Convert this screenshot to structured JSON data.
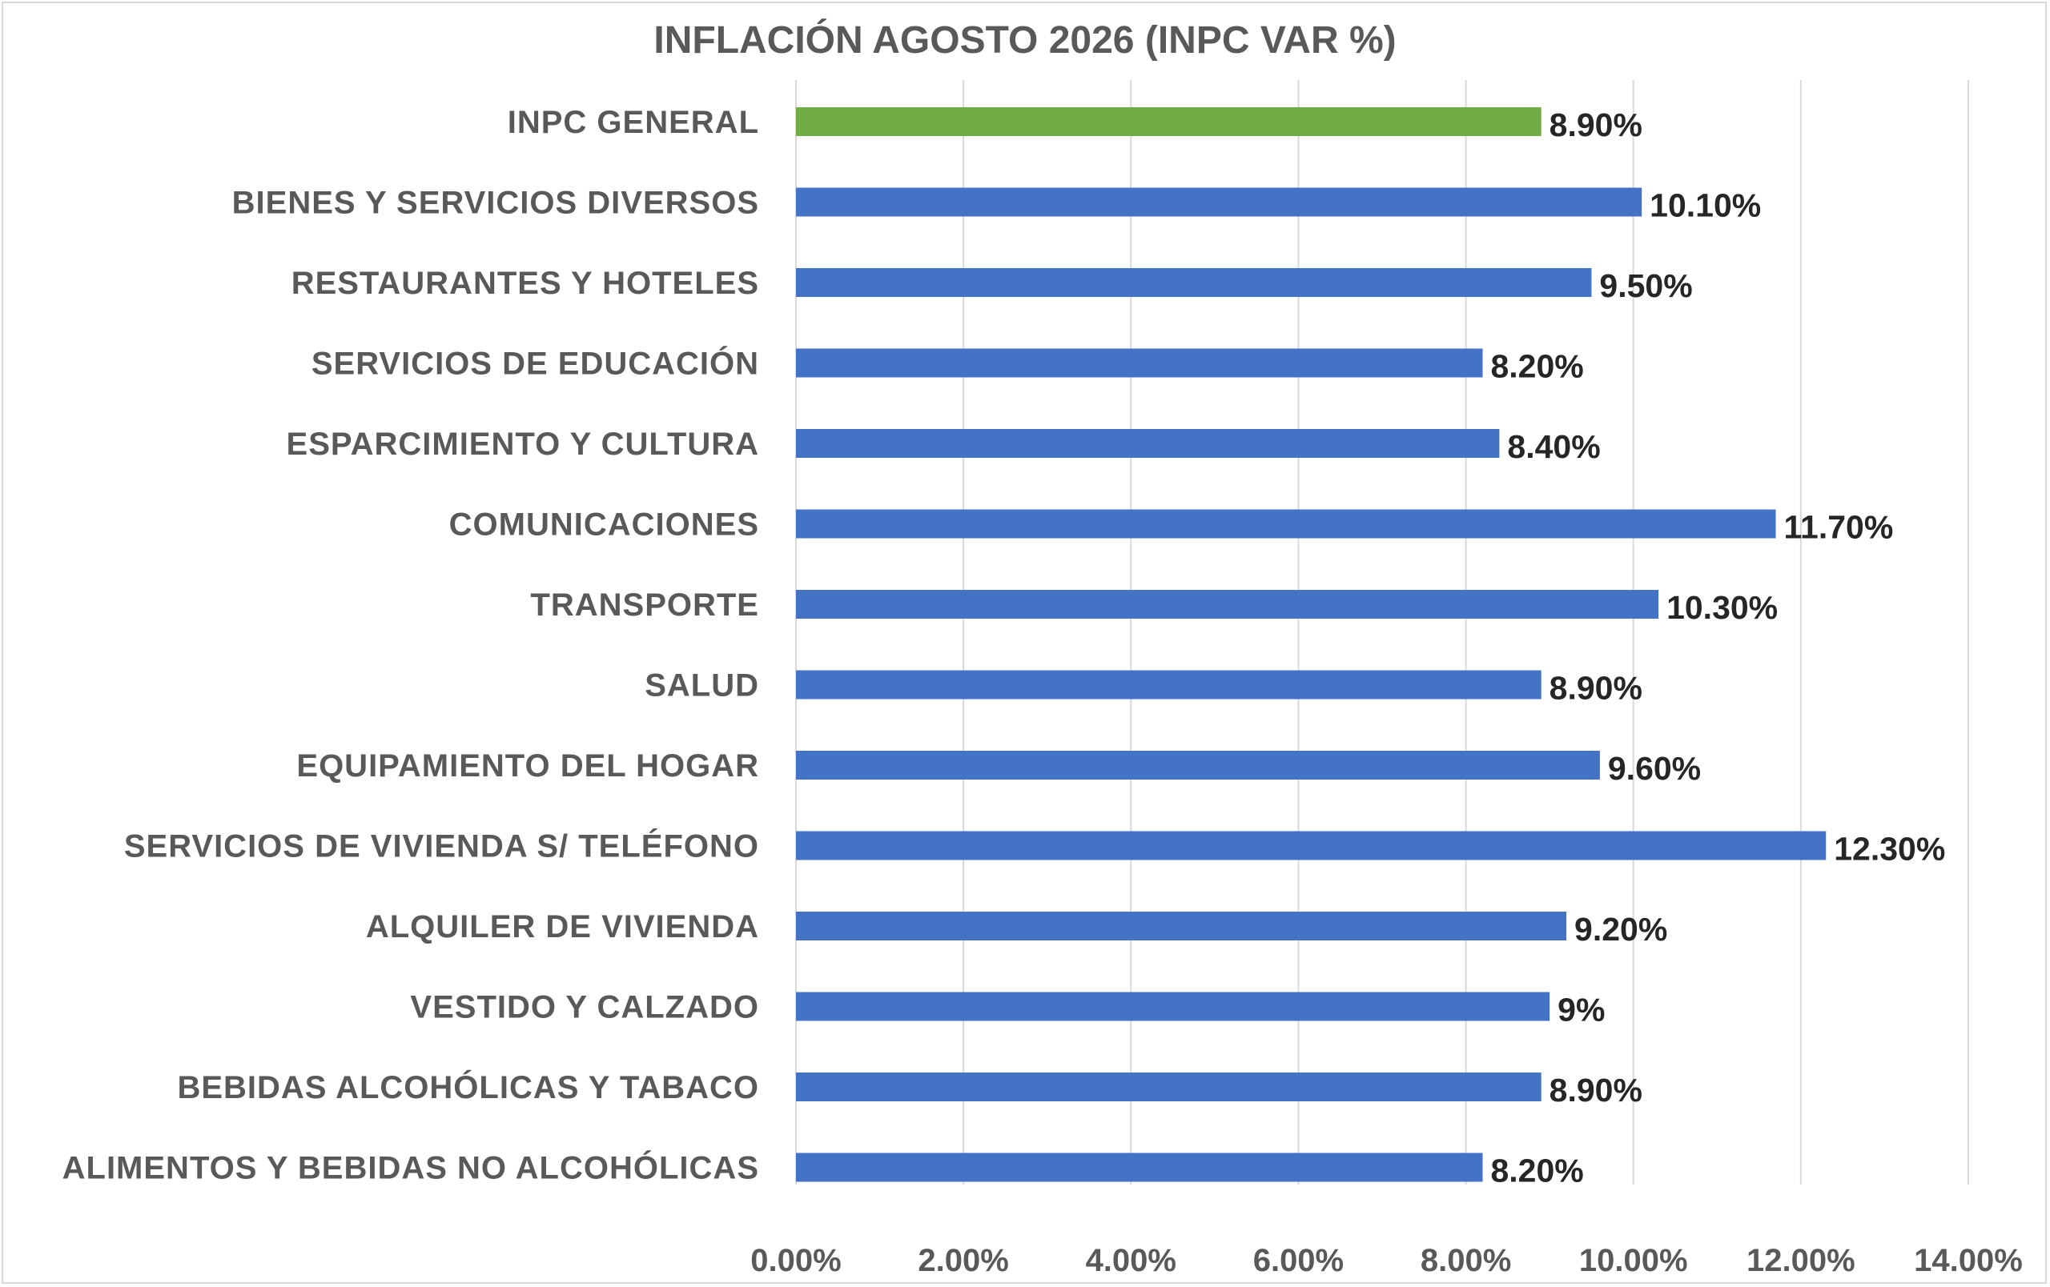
{
  "chart_data": {
    "type": "bar",
    "orientation": "horizontal",
    "title": "INFLACIÓN AGOSTO 2026 (INPC VAR %)",
    "categories": [
      "INPC GENERAL",
      "BIENES Y SERVICIOS DIVERSOS",
      "RESTAURANTES Y HOTELES",
      "SERVICIOS DE EDUCACIÓN",
      "ESPARCIMIENTO Y CULTURA",
      "COMUNICACIONES",
      "TRANSPORTE",
      "SALUD",
      "EQUIPAMIENTO DEL HOGAR",
      "SERVICIOS DE VIVIENDA S/ TELÉFONO",
      "ALQUILER DE VIVIENDA",
      "VESTIDO Y CALZADO",
      "BEBIDAS ALCOHÓLICAS Y TABACO",
      "ALIMENTOS Y BEBIDAS NO ALCOHÓLICAS"
    ],
    "values": [
      8.9,
      10.1,
      9.5,
      8.2,
      8.4,
      11.7,
      10.3,
      8.9,
      9.6,
      12.3,
      9.2,
      9.0,
      8.9,
      8.2
    ],
    "data_labels": [
      "8.90%",
      "10.10%",
      "9.50%",
      "8.20%",
      "8.40%",
      "11.70%",
      "10.30%",
      "8.90%",
      "9.60%",
      "12.30%",
      "9.20%",
      "9%",
      "8.90%",
      "8.20%"
    ],
    "bar_colors": [
      "#70ad47",
      "#4472c4",
      "#4472c4",
      "#4472c4",
      "#4472c4",
      "#4472c4",
      "#4472c4",
      "#4472c4",
      "#4472c4",
      "#4472c4",
      "#4472c4",
      "#4472c4",
      "#4472c4",
      "#4472c4"
    ],
    "xlim": [
      0,
      14
    ],
    "xticks": [
      0,
      2,
      4,
      6,
      8,
      10,
      12,
      14
    ],
    "xtick_labels": [
      "0.00%",
      "2.00%",
      "4.00%",
      "6.00%",
      "8.00%",
      "10.00%",
      "12.00%",
      "14.00%"
    ],
    "grid": true,
    "legend": "none"
  }
}
